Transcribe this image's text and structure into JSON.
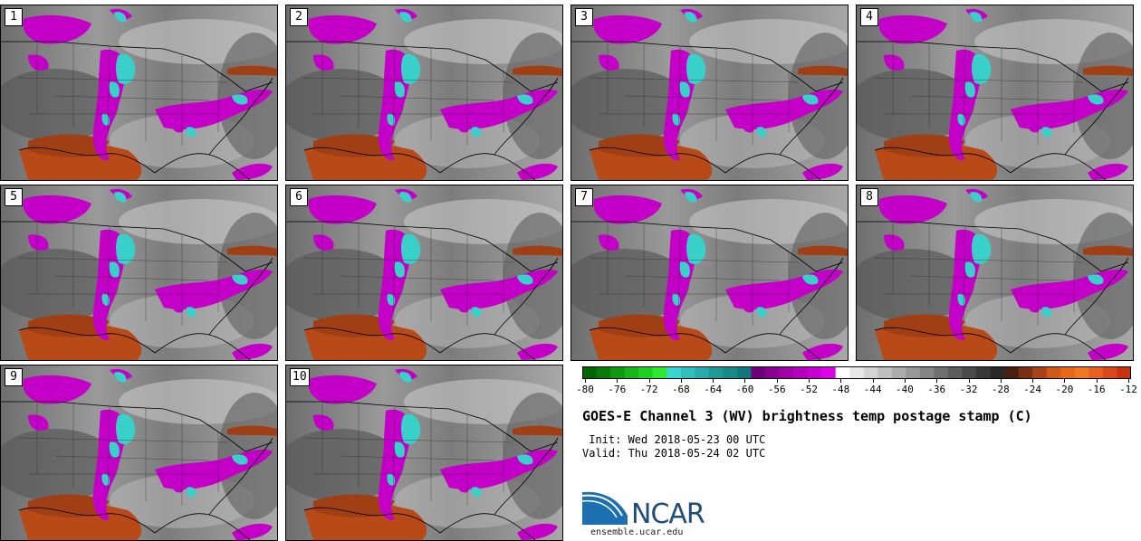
{
  "panels": [
    {
      "label": "1"
    },
    {
      "label": "2"
    },
    {
      "label": "3"
    },
    {
      "label": "4"
    },
    {
      "label": "5"
    },
    {
      "label": "6"
    },
    {
      "label": "7"
    },
    {
      "label": "8"
    },
    {
      "label": "9"
    },
    {
      "label": "10"
    }
  ],
  "colorbar": {
    "colors": [
      "#006400",
      "#087c08",
      "#109810",
      "#18b418",
      "#20d020",
      "#30e830",
      "#38d8d0",
      "#30c0c0",
      "#28acac",
      "#209898",
      "#188888",
      "#107878",
      "#70007a",
      "#8a0090",
      "#a000a6",
      "#b400bc",
      "#c800d0",
      "#dc00e4",
      "#ffffff",
      "#e8e8e8",
      "#d4d4d4",
      "#c0c0c0",
      "#acacac",
      "#989898",
      "#848484",
      "#707070",
      "#5c5c5c",
      "#4a4a4a",
      "#383838",
      "#282828",
      "#4a1e10",
      "#7a3010",
      "#a84218",
      "#d05818",
      "#e86818",
      "#f07820",
      "#e86020",
      "#d84818",
      "#c83010"
    ],
    "tick_labels": [
      "-80",
      "-76",
      "-72",
      "-68",
      "-64",
      "-60",
      "-56",
      "-52",
      "-48",
      "-44",
      "-40",
      "-36",
      "-32",
      "-28",
      "-24",
      "-20",
      "-16",
      "-12"
    ]
  },
  "title": "GOES-E Channel 3 (WV) brightness temp postage stamp (C)",
  "init_line": " Init: Wed 2018-05-23 00 UTC",
  "valid_line": "Valid: Thu 2018-05-24 02 UTC",
  "logo": {
    "text": "NCAR",
    "url": "ensemble.ucar.edu"
  }
}
